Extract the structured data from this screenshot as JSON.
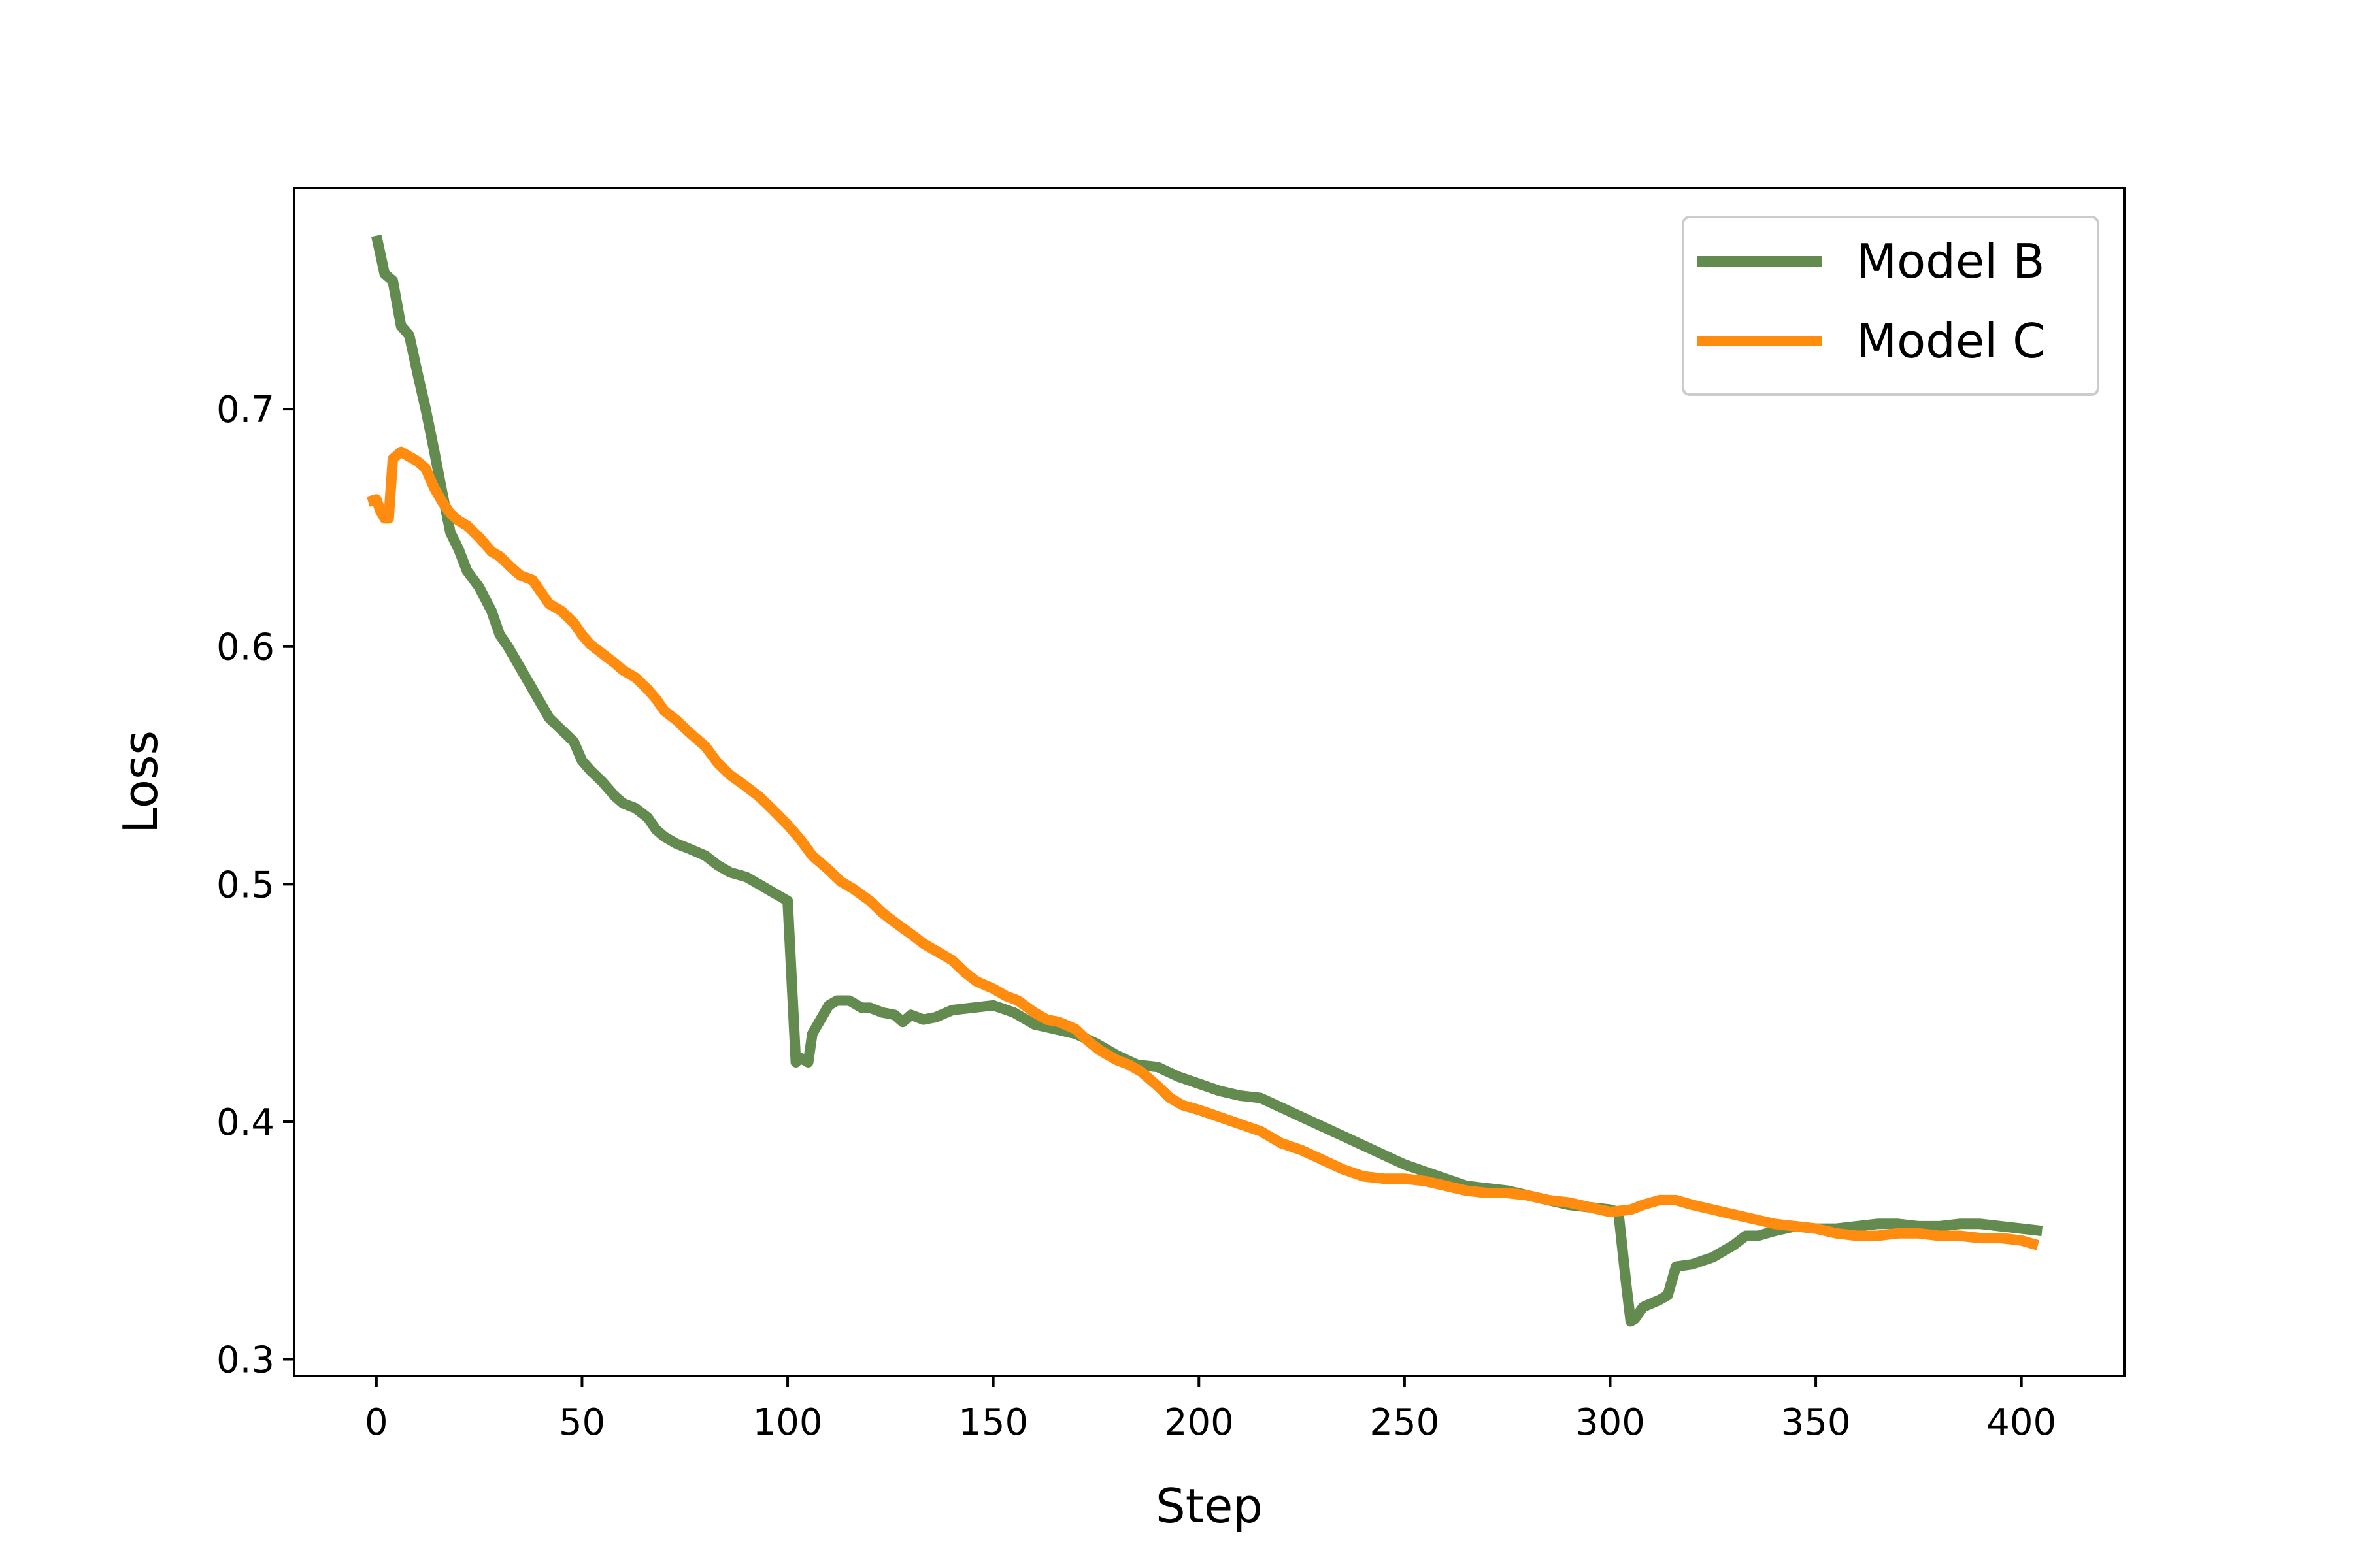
{
  "chart_data": {
    "type": "line",
    "title": "",
    "xlabel": "Step",
    "ylabel": "Loss",
    "xlim": [
      -20,
      425
    ],
    "ylim": [
      0.293,
      0.793
    ],
    "xticks": [
      0,
      50,
      100,
      150,
      200,
      250,
      300,
      350,
      400
    ],
    "xtick_labels": [
      "0",
      "50",
      "100",
      "150",
      "200",
      "250",
      "300",
      "350",
      "400"
    ],
    "yticks": [
      0.3,
      0.4,
      0.5,
      0.6,
      0.7
    ],
    "ytick_labels": [
      "0.3",
      "0.4",
      "0.5",
      "0.6",
      "0.7"
    ],
    "grid": false,
    "legend_position": "top-right",
    "series": [
      {
        "name": "Model B",
        "color": "#648b4f",
        "points": [
          [
            0,
            0.773
          ],
          [
            2,
            0.757
          ],
          [
            4,
            0.754
          ],
          [
            6,
            0.735
          ],
          [
            8,
            0.731
          ],
          [
            10,
            0.715
          ],
          [
            12,
            0.7
          ],
          [
            14,
            0.683
          ],
          [
            16,
            0.665
          ],
          [
            18,
            0.648
          ],
          [
            20,
            0.641
          ],
          [
            22,
            0.632
          ],
          [
            25,
            0.625
          ],
          [
            28,
            0.615
          ],
          [
            30,
            0.605
          ],
          [
            32,
            0.6
          ],
          [
            35,
            0.591
          ],
          [
            37,
            0.585
          ],
          [
            40,
            0.576
          ],
          [
            42,
            0.57
          ],
          [
            45,
            0.565
          ],
          [
            48,
            0.56
          ],
          [
            50,
            0.552
          ],
          [
            52,
            0.548
          ],
          [
            55,
            0.543
          ],
          [
            58,
            0.537
          ],
          [
            60,
            0.534
          ],
          [
            63,
            0.532
          ],
          [
            66,
            0.528
          ],
          [
            68,
            0.523
          ],
          [
            70,
            0.52
          ],
          [
            73,
            0.517
          ],
          [
            76,
            0.515
          ],
          [
            80,
            0.512
          ],
          [
            83,
            0.508
          ],
          [
            86,
            0.505
          ],
          [
            90,
            0.503
          ],
          [
            93,
            0.5
          ],
          [
            96,
            0.497
          ],
          [
            100,
            0.493
          ],
          [
            102,
            0.425
          ],
          [
            103,
            0.427
          ],
          [
            105,
            0.425
          ],
          [
            106,
            0.437
          ],
          [
            108,
            0.443
          ],
          [
            110,
            0.449
          ],
          [
            112,
            0.451
          ],
          [
            115,
            0.451
          ],
          [
            118,
            0.448
          ],
          [
            120,
            0.448
          ],
          [
            123,
            0.446
          ],
          [
            126,
            0.445
          ],
          [
            128,
            0.442
          ],
          [
            130,
            0.445
          ],
          [
            133,
            0.443
          ],
          [
            136,
            0.444
          ],
          [
            140,
            0.447
          ],
          [
            145,
            0.448
          ],
          [
            150,
            0.449
          ],
          [
            155,
            0.446
          ],
          [
            160,
            0.441
          ],
          [
            165,
            0.439
          ],
          [
            170,
            0.437
          ],
          [
            175,
            0.433
          ],
          [
            180,
            0.428
          ],
          [
            185,
            0.424
          ],
          [
            190,
            0.423
          ],
          [
            195,
            0.419
          ],
          [
            200,
            0.416
          ],
          [
            205,
            0.413
          ],
          [
            210,
            0.411
          ],
          [
            215,
            0.41
          ],
          [
            220,
            0.406
          ],
          [
            225,
            0.402
          ],
          [
            230,
            0.398
          ],
          [
            235,
            0.394
          ],
          [
            240,
            0.39
          ],
          [
            245,
            0.386
          ],
          [
            250,
            0.382
          ],
          [
            255,
            0.379
          ],
          [
            260,
            0.376
          ],
          [
            265,
            0.373
          ],
          [
            270,
            0.372
          ],
          [
            275,
            0.371
          ],
          [
            280,
            0.369
          ],
          [
            285,
            0.367
          ],
          [
            290,
            0.365
          ],
          [
            295,
            0.364
          ],
          [
            300,
            0.363
          ],
          [
            302,
            0.362
          ],
          [
            304,
            0.33
          ],
          [
            305,
            0.316
          ],
          [
            306,
            0.317
          ],
          [
            308,
            0.322
          ],
          [
            312,
            0.325
          ],
          [
            314,
            0.327
          ],
          [
            316,
            0.339
          ],
          [
            320,
            0.34
          ],
          [
            325,
            0.343
          ],
          [
            330,
            0.348
          ],
          [
            333,
            0.352
          ],
          [
            336,
            0.352
          ],
          [
            340,
            0.354
          ],
          [
            345,
            0.356
          ],
          [
            350,
            0.355
          ],
          [
            355,
            0.355
          ],
          [
            360,
            0.356
          ],
          [
            365,
            0.357
          ],
          [
            370,
            0.357
          ],
          [
            375,
            0.356
          ],
          [
            380,
            0.356
          ],
          [
            385,
            0.357
          ],
          [
            390,
            0.357
          ],
          [
            395,
            0.356
          ],
          [
            400,
            0.355
          ],
          [
            405,
            0.354
          ]
        ]
      },
      {
        "name": "Model C",
        "color": "#ff8c0f",
        "points": [
          [
            -2,
            0.661
          ],
          [
            0,
            0.662
          ],
          [
            1,
            0.657
          ],
          [
            2,
            0.654
          ],
          [
            3,
            0.654
          ],
          [
            4,
            0.679
          ],
          [
            6,
            0.682
          ],
          [
            8,
            0.68
          ],
          [
            10,
            0.678
          ],
          [
            12,
            0.675
          ],
          [
            14,
            0.667
          ],
          [
            16,
            0.661
          ],
          [
            18,
            0.656
          ],
          [
            20,
            0.653
          ],
          [
            22,
            0.651
          ],
          [
            25,
            0.646
          ],
          [
            28,
            0.64
          ],
          [
            30,
            0.638
          ],
          [
            33,
            0.633
          ],
          [
            35,
            0.63
          ],
          [
            38,
            0.628
          ],
          [
            40,
            0.623
          ],
          [
            42,
            0.618
          ],
          [
            45,
            0.615
          ],
          [
            48,
            0.61
          ],
          [
            50,
            0.605
          ],
          [
            52,
            0.601
          ],
          [
            55,
            0.597
          ],
          [
            58,
            0.593
          ],
          [
            60,
            0.59
          ],
          [
            63,
            0.587
          ],
          [
            66,
            0.582
          ],
          [
            68,
            0.578
          ],
          [
            70,
            0.573
          ],
          [
            73,
            0.569
          ],
          [
            76,
            0.564
          ],
          [
            80,
            0.558
          ],
          [
            83,
            0.551
          ],
          [
            86,
            0.546
          ],
          [
            90,
            0.541
          ],
          [
            93,
            0.537
          ],
          [
            96,
            0.532
          ],
          [
            100,
            0.525
          ],
          [
            103,
            0.519
          ],
          [
            106,
            0.512
          ],
          [
            110,
            0.506
          ],
          [
            113,
            0.501
          ],
          [
            116,
            0.498
          ],
          [
            120,
            0.493
          ],
          [
            123,
            0.488
          ],
          [
            126,
            0.484
          ],
          [
            130,
            0.479
          ],
          [
            133,
            0.475
          ],
          [
            136,
            0.472
          ],
          [
            140,
            0.468
          ],
          [
            143,
            0.463
          ],
          [
            146,
            0.459
          ],
          [
            150,
            0.456
          ],
          [
            153,
            0.453
          ],
          [
            156,
            0.451
          ],
          [
            160,
            0.446
          ],
          [
            163,
            0.443
          ],
          [
            166,
            0.442
          ],
          [
            170,
            0.439
          ],
          [
            173,
            0.434
          ],
          [
            176,
            0.43
          ],
          [
            180,
            0.426
          ],
          [
            183,
            0.424
          ],
          [
            186,
            0.421
          ],
          [
            190,
            0.415
          ],
          [
            193,
            0.41
          ],
          [
            196,
            0.407
          ],
          [
            200,
            0.405
          ],
          [
            205,
            0.402
          ],
          [
            210,
            0.399
          ],
          [
            215,
            0.396
          ],
          [
            220,
            0.391
          ],
          [
            225,
            0.388
          ],
          [
            230,
            0.384
          ],
          [
            235,
            0.38
          ],
          [
            240,
            0.377
          ],
          [
            245,
            0.376
          ],
          [
            250,
            0.376
          ],
          [
            255,
            0.375
          ],
          [
            260,
            0.373
          ],
          [
            265,
            0.371
          ],
          [
            270,
            0.37
          ],
          [
            275,
            0.37
          ],
          [
            280,
            0.369
          ],
          [
            285,
            0.367
          ],
          [
            290,
            0.366
          ],
          [
            295,
            0.364
          ],
          [
            300,
            0.362
          ],
          [
            305,
            0.363
          ],
          [
            308,
            0.365
          ],
          [
            312,
            0.367
          ],
          [
            316,
            0.367
          ],
          [
            320,
            0.365
          ],
          [
            325,
            0.363
          ],
          [
            330,
            0.361
          ],
          [
            335,
            0.359
          ],
          [
            340,
            0.357
          ],
          [
            345,
            0.356
          ],
          [
            350,
            0.355
          ],
          [
            355,
            0.353
          ],
          [
            360,
            0.352
          ],
          [
            365,
            0.352
          ],
          [
            370,
            0.353
          ],
          [
            375,
            0.353
          ],
          [
            380,
            0.352
          ],
          [
            385,
            0.352
          ],
          [
            390,
            0.351
          ],
          [
            395,
            0.351
          ],
          [
            400,
            0.35
          ],
          [
            404,
            0.348
          ]
        ]
      }
    ]
  }
}
